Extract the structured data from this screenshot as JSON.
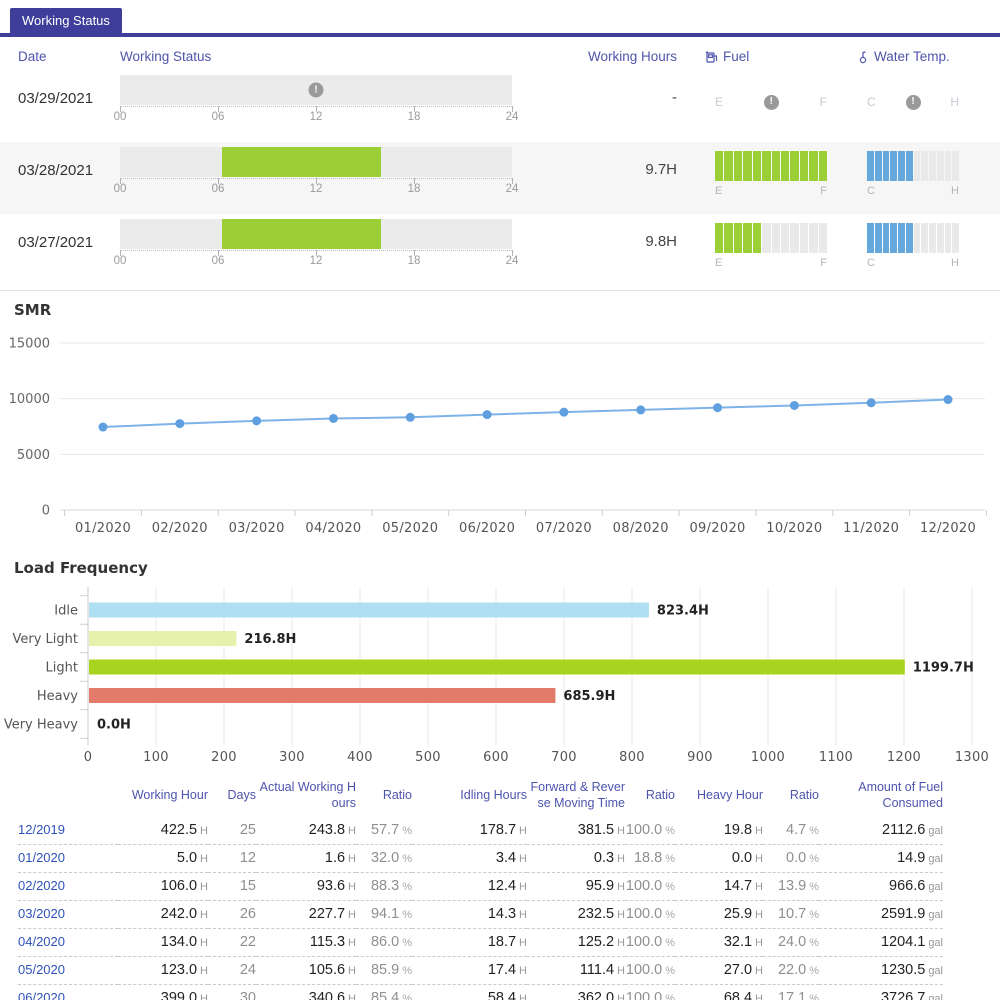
{
  "tab": {
    "label": "Working Status"
  },
  "colors": {
    "accent_indigo": "#3f3e9b",
    "header_blue": "#4f55ab",
    "link_blue": "#2e52bd",
    "status_green": "#9ccf35",
    "gauge_blue": "#64a8dc"
  },
  "status_table": {
    "headers": {
      "date": "Date",
      "working_status": "Working Status",
      "working_hours": "Working Hours",
      "fuel": "Fuel",
      "water_temp": "Water Temp."
    },
    "timeline_axis": [
      "00",
      "06",
      "12",
      "18",
      "24"
    ],
    "gauge_letters": {
      "fuel_left": "E",
      "fuel_right": "F",
      "water_left": "C",
      "water_right": "H"
    },
    "gauge_segments": 12,
    "rows": [
      {
        "date": "03/29/2021",
        "working_hours": "-",
        "no_data": true,
        "timeline": null,
        "fuel_filled": null,
        "water_filled": null,
        "striped": false
      },
      {
        "date": "03/28/2021",
        "working_hours": "9.7H",
        "no_data": false,
        "timeline": {
          "start_hour": 6.25,
          "end_hour": 16.0
        },
        "fuel_filled": 12,
        "water_filled": 6,
        "striped": true
      },
      {
        "date": "03/27/2021",
        "working_hours": "9.8H",
        "no_data": false,
        "timeline": {
          "start_hour": 6.25,
          "end_hour": 16.0
        },
        "fuel_filled": 5,
        "water_filled": 6,
        "striped": false
      }
    ]
  },
  "chart_data": [
    {
      "type": "line",
      "title": "SMR",
      "x": [
        "01/2020",
        "02/2020",
        "03/2020",
        "04/2020",
        "05/2020",
        "06/2020",
        "07/2020",
        "08/2020",
        "09/2020",
        "10/2020",
        "11/2020",
        "12/2020"
      ],
      "values": [
        7450,
        7760,
        8010,
        8220,
        8330,
        8570,
        8790,
        8990,
        9190,
        9390,
        9630,
        9920
      ],
      "ylim": [
        0,
        15000
      ],
      "yticks": [
        0,
        5000,
        10000,
        15000
      ],
      "line_color": "#7db3e8",
      "point_color": "#5f9fdf",
      "grid": "on",
      "legend": "none"
    },
    {
      "type": "bar",
      "orientation": "horizontal",
      "title": "Load Frequency",
      "categories": [
        "Idle",
        "Very Light",
        "Light",
        "Heavy",
        "Very Heavy"
      ],
      "values": [
        823.4,
        216.8,
        1199.7,
        685.9,
        0.0
      ],
      "value_labels": [
        "823.4H",
        "216.8H",
        "1199.7H",
        "685.9H",
        "0.0H"
      ],
      "bar_colors": [
        "#aedff2",
        "#e6f2ac",
        "#a8d41f",
        "#e27b6a",
        "#cccccc"
      ],
      "xlim": [
        0,
        1300
      ],
      "xtick_step": 100,
      "grid": "on",
      "legend": "none"
    }
  ],
  "table": {
    "columns": [
      {
        "key": "month",
        "label": "",
        "unit": "",
        "dim": false,
        "wrap": false
      },
      {
        "key": "working_hour",
        "label": "Working Hour",
        "unit": "H",
        "dim": false,
        "wrap": false
      },
      {
        "key": "days",
        "label": "Days",
        "unit": "",
        "dim": true,
        "wrap": false
      },
      {
        "key": "actual_working_hours",
        "label": "Actual Working Hours",
        "unit": "H",
        "dim": false,
        "wrap": true
      },
      {
        "key": "ratio1",
        "label": "Ratio",
        "unit": "%",
        "dim": true,
        "wrap": false
      },
      {
        "key": "idling_hours",
        "label": "Idling Hours",
        "unit": "H",
        "dim": false,
        "wrap": false
      },
      {
        "key": "fwd_rev",
        "label": "Forward & Reverse Moving Time",
        "unit": "H",
        "dim": false,
        "wrap": true
      },
      {
        "key": "ratio2",
        "label": "Ratio",
        "unit": "%",
        "dim": true,
        "wrap": false
      },
      {
        "key": "heavy_hour",
        "label": "Heavy Hour",
        "unit": "H",
        "dim": false,
        "wrap": false
      },
      {
        "key": "ratio3",
        "label": "Ratio",
        "unit": "%",
        "dim": true,
        "wrap": false
      },
      {
        "key": "fuel",
        "label": "Amount of Fuel Consumed",
        "unit": "gal",
        "dim": false,
        "wrap": false
      }
    ],
    "rows": [
      {
        "month": "12/2019",
        "working_hour": "422.5",
        "days": "25",
        "actual_working_hours": "243.8",
        "ratio1": "57.7",
        "idling_hours": "178.7",
        "fwd_rev": "381.5",
        "ratio2": "100.0",
        "heavy_hour": "19.8",
        "ratio3": "4.7",
        "fuel": "2112.6"
      },
      {
        "month": "01/2020",
        "working_hour": "5.0",
        "days": "12",
        "actual_working_hours": "1.6",
        "ratio1": "32.0",
        "idling_hours": "3.4",
        "fwd_rev": "0.3",
        "ratio2": "18.8",
        "heavy_hour": "0.0",
        "ratio3": "0.0",
        "fuel": "14.9"
      },
      {
        "month": "02/2020",
        "working_hour": "106.0",
        "days": "15",
        "actual_working_hours": "93.6",
        "ratio1": "88.3",
        "idling_hours": "12.4",
        "fwd_rev": "95.9",
        "ratio2": "100.0",
        "heavy_hour": "14.7",
        "ratio3": "13.9",
        "fuel": "966.6"
      },
      {
        "month": "03/2020",
        "working_hour": "242.0",
        "days": "26",
        "actual_working_hours": "227.7",
        "ratio1": "94.1",
        "idling_hours": "14.3",
        "fwd_rev": "232.5",
        "ratio2": "100.0",
        "heavy_hour": "25.9",
        "ratio3": "10.7",
        "fuel": "2591.9"
      },
      {
        "month": "04/2020",
        "working_hour": "134.0",
        "days": "22",
        "actual_working_hours": "115.3",
        "ratio1": "86.0",
        "idling_hours": "18.7",
        "fwd_rev": "125.2",
        "ratio2": "100.0",
        "heavy_hour": "32.1",
        "ratio3": "24.0",
        "fuel": "1204.1"
      },
      {
        "month": "05/2020",
        "working_hour": "123.0",
        "days": "24",
        "actual_working_hours": "105.6",
        "ratio1": "85.9",
        "idling_hours": "17.4",
        "fwd_rev": "111.4",
        "ratio2": "100.0",
        "heavy_hour": "27.0",
        "ratio3": "22.0",
        "fuel": "1230.5"
      },
      {
        "month": "06/2020",
        "working_hour": "399.0",
        "days": "30",
        "actual_working_hours": "340.6",
        "ratio1": "85.4",
        "idling_hours": "58.4",
        "fwd_rev": "362.0",
        "ratio2": "100.0",
        "heavy_hour": "68.4",
        "ratio3": "17.1",
        "fuel": "3726.7"
      }
    ]
  }
}
